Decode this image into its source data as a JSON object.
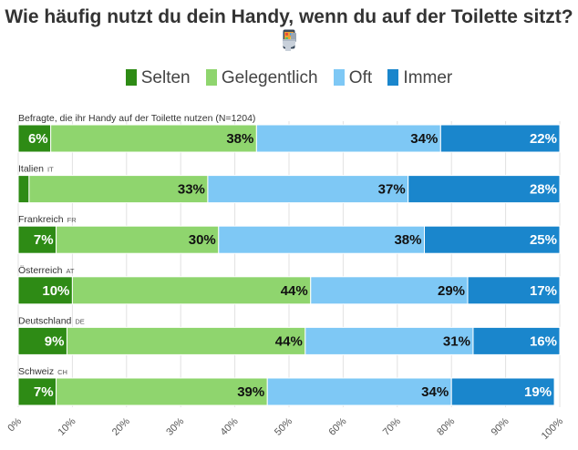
{
  "chart_data": {
    "type": "bar",
    "orientation": "horizontal",
    "stacked": true,
    "title": "Wie häufig nutzt du dein Handy, wenn du auf der Toilette sitzt?",
    "title_icons": [
      "mobile-phone-icon",
      "toilet-icon"
    ],
    "series": [
      {
        "name": "Selten",
        "color": "#2e8b15"
      },
      {
        "name": "Gelegentlich",
        "color": "#8fd56e"
      },
      {
        "name": "Oft",
        "color": "#7ec8f5"
      },
      {
        "name": "Immer",
        "color": "#1a86cc"
      }
    ],
    "legend_position": "top",
    "categories": [
      {
        "label": "Befragte, die ihr Handy auf der Toilette nutzen (N=1204)",
        "code": "",
        "values": [
          6,
          38,
          34,
          22
        ],
        "labels": [
          "6%",
          "38%",
          "34%",
          "22%"
        ]
      },
      {
        "label": "Italien",
        "code": "IT",
        "values": [
          2,
          33,
          37,
          28
        ],
        "labels": [
          "",
          "33%",
          "37%",
          "28%"
        ]
      },
      {
        "label": "Frankreich",
        "code": "FR",
        "values": [
          7,
          30,
          38,
          25
        ],
        "labels": [
          "7%",
          "30%",
          "38%",
          "25%"
        ]
      },
      {
        "label": "Österreich",
        "code": "AT",
        "values": [
          10,
          44,
          29,
          17
        ],
        "labels": [
          "10%",
          "44%",
          "29%",
          "17%"
        ]
      },
      {
        "label": "Deutschland",
        "code": "DE",
        "values": [
          9,
          44,
          31,
          16
        ],
        "labels": [
          "9%",
          "44%",
          "31%",
          "16%"
        ]
      },
      {
        "label": "Schweiz",
        "code": "CH",
        "values": [
          7,
          39,
          34,
          19
        ],
        "labels": [
          "7%",
          "39%",
          "34%",
          "19%"
        ]
      }
    ],
    "x_ticks": [
      "0%",
      "10%",
      "20%",
      "30%",
      "40%",
      "50%",
      "60%",
      "70%",
      "80%",
      "90%",
      "100%"
    ],
    "xlim": [
      0,
      100
    ],
    "grid": true
  }
}
